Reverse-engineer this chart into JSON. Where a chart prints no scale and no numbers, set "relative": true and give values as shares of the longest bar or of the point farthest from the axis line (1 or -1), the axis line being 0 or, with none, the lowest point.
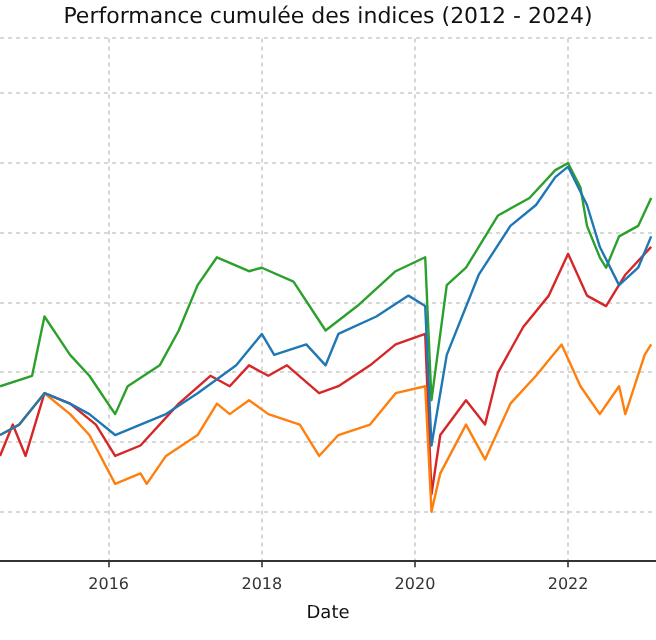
{
  "chart_data": {
    "type": "line",
    "title": "Performance cumulée des indices (2012 - 2024)",
    "xlabel": "Date",
    "relative": true,
    "grid": true,
    "line_style": "solid",
    "marker": "none",
    "xlim": [
      "2014-08-01",
      "2023-02-24"
    ],
    "xticks": [
      "2016",
      "2018",
      "2020",
      "2022"
    ],
    "series": [
      {
        "color": "#1f77b4",
        "x": [
          "2014-08",
          "2014-11",
          "2015-03",
          "2015-07",
          "2015-10",
          "2016-02",
          "2016-06",
          "2016-10",
          "2017-03",
          "2017-09",
          "2018-01",
          "2018-03",
          "2018-08",
          "2018-11",
          "2019-01",
          "2019-07",
          "2019-12",
          "2020-02-19",
          "2020-03-20",
          "2020-06",
          "2020-11",
          "2021-04",
          "2021-08",
          "2021-11",
          "2022-01",
          "2022-04",
          "2022-06",
          "2022-09",
          "2022-12",
          "2023-02"
        ],
        "values": [
          0.22,
          0.25,
          0.34,
          0.31,
          0.28,
          0.22,
          0.25,
          0.28,
          0.34,
          0.42,
          0.51,
          0.45,
          0.48,
          0.42,
          0.51,
          0.56,
          0.62,
          0.59,
          0.19,
          0.45,
          0.68,
          0.82,
          0.88,
          0.96,
          0.99,
          0.88,
          0.76,
          0.65,
          0.7,
          0.79
        ]
      },
      {
        "color": "#ff7f0e",
        "x": [
          "2014-08",
          "2014-11",
          "2015-03",
          "2015-07",
          "2015-10",
          "2016-02",
          "2016-06",
          "2016-07",
          "2016-10",
          "2017-03",
          "2017-06",
          "2017-08",
          "2017-11",
          "2018-02",
          "2018-07",
          "2018-10",
          "2019-01",
          "2019-06",
          "2019-10",
          "2020-02-19",
          "2020-03-20",
          "2020-05",
          "2020-09",
          "2020-12",
          "2021-04",
          "2021-08",
          "2021-12",
          "2022-03",
          "2022-06",
          "2022-09",
          "2022-10",
          "2023-01",
          "2023-02"
        ],
        "values": [
          0.22,
          0.25,
          0.34,
          0.28,
          0.22,
          0.08,
          0.11,
          0.08,
          0.16,
          0.22,
          0.31,
          0.28,
          0.32,
          0.28,
          0.25,
          0.16,
          0.22,
          0.25,
          0.34,
          0.36,
          0,
          0.11,
          0.25,
          0.15,
          0.31,
          0.39,
          0.48,
          0.36,
          0.28,
          0.36,
          0.28,
          0.45,
          0.48
        ]
      },
      {
        "color": "#2ca02c",
        "x": [
          "2014-08",
          "2015-01",
          "2015-03",
          "2015-07",
          "2015-10",
          "2016-02",
          "2016-04",
          "2016-09",
          "2016-12",
          "2017-03",
          "2017-06",
          "2017-11",
          "2018-01",
          "2018-06",
          "2018-11",
          "2019-04",
          "2019-10",
          "2020-02-19",
          "2020-03-20",
          "2020-06",
          "2020-09",
          "2021-02",
          "2021-07",
          "2021-11",
          "2022-01",
          "2022-03",
          "2022-04",
          "2022-06",
          "2022-07",
          "2022-09",
          "2022-12",
          "2023-02"
        ],
        "values": [
          0.36,
          0.39,
          0.56,
          0.45,
          0.39,
          0.28,
          0.36,
          0.42,
          0.52,
          0.65,
          0.73,
          0.69,
          0.7,
          0.66,
          0.52,
          0.59,
          0.69,
          0.73,
          0.32,
          0.65,
          0.7,
          0.85,
          0.9,
          0.98,
          1,
          0.93,
          0.82,
          0.73,
          0.7,
          0.79,
          0.82,
          0.9
        ]
      },
      {
        "color": "#d62728",
        "x": [
          "2014-08",
          "2014-10",
          "2014-12",
          "2015-03",
          "2015-07",
          "2015-11",
          "2016-02",
          "2016-06",
          "2016-12",
          "2017-05",
          "2017-08",
          "2017-11",
          "2018-02",
          "2018-05",
          "2018-10",
          "2019-01",
          "2019-06",
          "2019-10",
          "2020-02-19",
          "2020-03-20",
          "2020-05",
          "2020-09",
          "2020-12",
          "2021-02",
          "2021-06",
          "2021-10",
          "2022-01",
          "2022-04",
          "2022-07",
          "2022-10",
          "2023-02"
        ],
        "values": [
          0.16,
          0.25,
          0.16,
          0.34,
          0.31,
          0.25,
          0.16,
          0.19,
          0.31,
          0.39,
          0.36,
          0.42,
          0.39,
          0.42,
          0.34,
          0.36,
          0.42,
          0.48,
          0.51,
          0.05,
          0.22,
          0.32,
          0.25,
          0.4,
          0.53,
          0.62,
          0.74,
          0.62,
          0.59,
          0.68,
          0.76
        ]
      }
    ]
  }
}
